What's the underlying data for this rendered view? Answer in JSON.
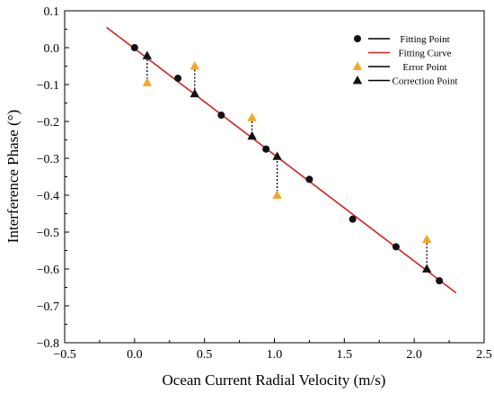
{
  "chart_data": {
    "type": "scatter",
    "xlabel": "Ocean Current Radial Velocity (m/s)",
    "ylabel": "Interference Phase (°)",
    "xlim": [
      -0.5,
      2.5
    ],
    "ylim": [
      -0.8,
      0.1
    ],
    "x_ticks": [
      -0.5,
      0.0,
      0.5,
      1.0,
      1.5,
      2.0,
      2.5
    ],
    "x_tick_labels": [
      "−0.5",
      "0.0",
      "0.5",
      "1.0",
      "1.5",
      "2.0",
      "2.5"
    ],
    "y_ticks": [
      0.1,
      0.0,
      -0.1,
      -0.2,
      -0.3,
      -0.4,
      -0.5,
      -0.6,
      -0.7,
      -0.8
    ],
    "y_tick_labels": [
      "0.1",
      "0.0",
      "−0.1",
      "−0.2",
      "−0.3",
      "−0.4",
      "−0.5",
      "−0.6",
      "−0.7",
      "−0.8"
    ],
    "grid": false,
    "legend_position": "top-right",
    "series": [
      {
        "name": "Fitting Point",
        "type": "scatter",
        "marker": "circle",
        "color": "#111111",
        "x": [
          0.0,
          0.31,
          0.62,
          0.94,
          1.25,
          1.56,
          1.87,
          2.18
        ],
        "y": [
          0.0,
          -0.083,
          -0.183,
          -0.275,
          -0.357,
          -0.465,
          -0.54,
          -0.632
        ]
      },
      {
        "name": "Fitting Curve",
        "type": "line",
        "color": "#d42020",
        "x": [
          -0.2,
          2.3
        ],
        "y": [
          0.055,
          -0.665
        ]
      },
      {
        "name": "Error Point",
        "type": "scatter",
        "marker": "triangle",
        "color": "#f5a623",
        "x": [
          0.09,
          0.43,
          0.84,
          1.02,
          2.09
        ],
        "y": [
          -0.095,
          -0.05,
          -0.19,
          -0.4,
          -0.52
        ]
      },
      {
        "name": "Correction Point",
        "type": "scatter",
        "marker": "triangle",
        "color": "#111111",
        "x": [
          0.09,
          0.43,
          0.84,
          1.02,
          2.09
        ],
        "y": [
          -0.022,
          -0.125,
          -0.24,
          -0.295,
          -0.6
        ]
      }
    ],
    "connectors": {
      "style": "dotted",
      "color": "#000000",
      "from_series": "Error Point",
      "to_series": "Correction Point"
    }
  }
}
